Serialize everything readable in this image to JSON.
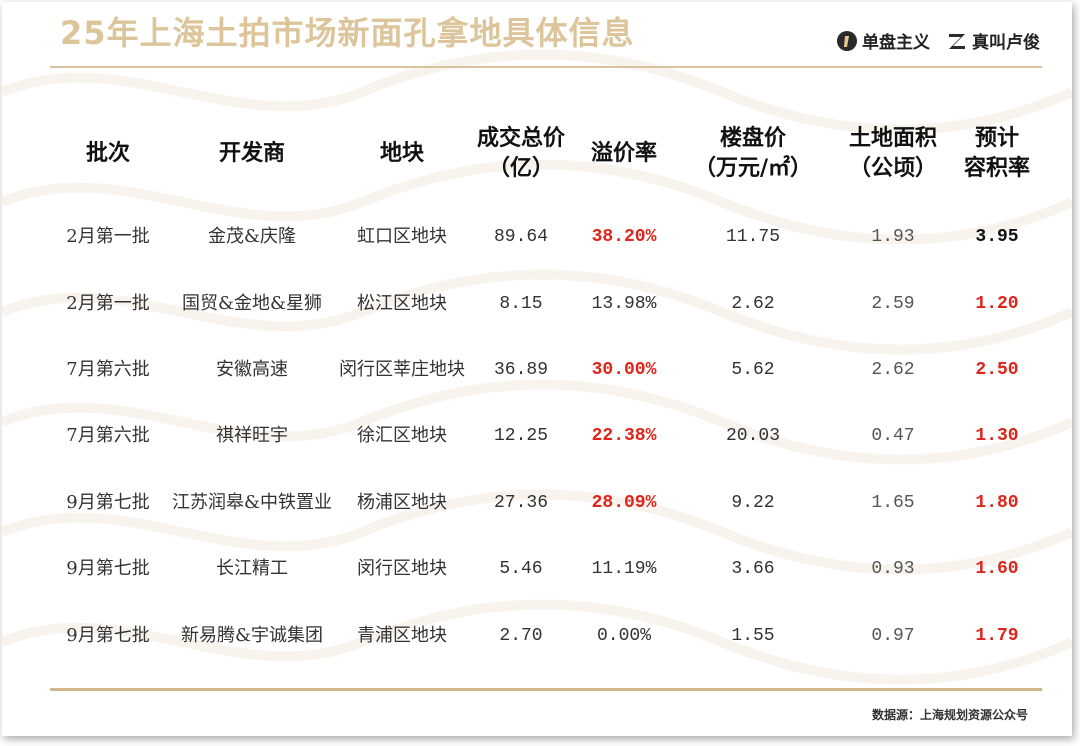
{
  "title": "25年上海土拍市场新面孔拿地具体信息",
  "brands": [
    "单盘主义",
    "真叫卢俊"
  ],
  "headers": [
    [
      "批次"
    ],
    [
      "开发商"
    ],
    [
      "地块"
    ],
    [
      "成交总价",
      "（亿）"
    ],
    [
      "溢价率"
    ],
    [
      "楼盘价",
      "（万元/㎡）"
    ],
    [
      "土地面积",
      "（公顷）"
    ],
    [
      "预计",
      "容积率"
    ]
  ],
  "rows": [
    {
      "batch": "2月第一批",
      "developer": "金茂&庆隆",
      "plot": "虹口区地块",
      "price": "89.64",
      "premium": "38.20%",
      "premium_hl": true,
      "house": "11.75",
      "area": "1.93",
      "far": "3.95",
      "far_red": false
    },
    {
      "batch": "2月第一批",
      "developer": "国贸&金地&星狮",
      "plot": "松江区地块",
      "price": "8.15",
      "premium": "13.98%",
      "premium_hl": false,
      "house": "2.62",
      "area": "2.59",
      "far": "1.20",
      "far_red": true
    },
    {
      "batch": "7月第六批",
      "developer": "安徽高速",
      "plot": "闵行区莘庄地块",
      "price": "36.89",
      "premium": "30.00%",
      "premium_hl": true,
      "house": "5.62",
      "area": "2.62",
      "far": "2.50",
      "far_red": true
    },
    {
      "batch": "7月第六批",
      "developer": "祺祥旺宇",
      "plot": "徐汇区地块",
      "price": "12.25",
      "premium": "22.38%",
      "premium_hl": true,
      "house": "20.03",
      "area": "0.47",
      "far": "1.30",
      "far_red": true
    },
    {
      "batch": "9月第七批",
      "developer": "江苏润皋&中铁置业",
      "plot": "杨浦区地块",
      "price": "27.36",
      "premium": "28.09%",
      "premium_hl": true,
      "house": "9.22",
      "area": "1.65",
      "far": "1.80",
      "far_red": true
    },
    {
      "batch": "9月第七批",
      "developer": "长江精工",
      "plot": "闵行区地块",
      "price": "5.46",
      "premium": "11.19%",
      "premium_hl": false,
      "house": "3.66",
      "area": "0.93",
      "far": "1.60",
      "far_red": true
    },
    {
      "batch": "9月第七批",
      "developer": "新易腾&宇诚集团",
      "plot": "青浦区地块",
      "price": "2.70",
      "premium": "0.00%",
      "premium_hl": false,
      "house": "1.55",
      "area": "0.97",
      "far": "1.79",
      "far_red": true
    }
  ],
  "source": "数据源：上海规划资源公众号",
  "colors": {
    "accent": "#dcc59a",
    "highlight": "#e0241b",
    "rule": "#d8c39e"
  }
}
